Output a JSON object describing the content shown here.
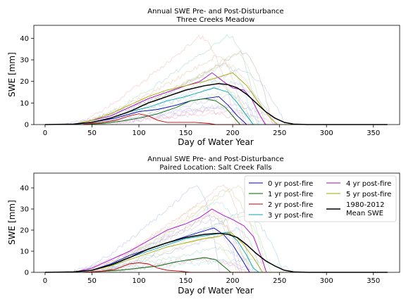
{
  "chart_data": [
    {
      "type": "line",
      "title_line1": "Annual SWE Pre- and Post-Disturbance",
      "title_line2": "Three Creeks Meadow",
      "xlabel": "Day of Water Year",
      "ylabel": "SWE [mm]",
      "xlim": [
        -12,
        378
      ],
      "ylim": [
        0,
        46
      ],
      "xticks": [
        0,
        50,
        100,
        150,
        200,
        250,
        300,
        350
      ],
      "yticks": [
        0,
        10,
        20,
        30,
        40
      ],
      "grid": false,
      "background_years_visible": true,
      "series": [
        {
          "name": "0 yr post-fire",
          "color": "#0000cc",
          "points": [
            [
              25,
              0
            ],
            [
              50,
              1
            ],
            [
              75,
              3
            ],
            [
              100,
              6
            ],
            [
              120,
              7
            ],
            [
              140,
              9
            ],
            [
              155,
              11
            ],
            [
              170,
              12
            ],
            [
              185,
              13
            ],
            [
              195,
              9
            ],
            [
              205,
              4
            ],
            [
              215,
              0
            ],
            [
              365,
              0
            ]
          ]
        },
        {
          "name": "1 yr post-fire",
          "color": "#006600",
          "points": [
            [
              40,
              0
            ],
            [
              60,
              0.5
            ],
            [
              80,
              1.5
            ],
            [
              100,
              3
            ],
            [
              120,
              5
            ],
            [
              140,
              8
            ],
            [
              155,
              11
            ],
            [
              170,
              12
            ],
            [
              182,
              11
            ],
            [
              192,
              8
            ],
            [
              200,
              4
            ],
            [
              208,
              0
            ],
            [
              365,
              0
            ]
          ]
        },
        {
          "name": "2 yr post-fire",
          "color": "#cc0000",
          "points": [
            [
              40,
              0
            ],
            [
              60,
              1
            ],
            [
              75,
              2
            ],
            [
              90,
              4
            ],
            [
              100,
              5
            ],
            [
              110,
              4
            ],
            [
              120,
              2
            ],
            [
              130,
              1
            ],
            [
              145,
              1
            ],
            [
              160,
              1
            ],
            [
              175,
              0.5
            ],
            [
              182,
              0
            ],
            [
              365,
              0
            ]
          ]
        },
        {
          "name": "3 yr post-fire",
          "color": "#00aaaa",
          "points": [
            [
              30,
              0
            ],
            [
              50,
              1
            ],
            [
              70,
              3
            ],
            [
              90,
              6
            ],
            [
              110,
              8
            ],
            [
              130,
              11
            ],
            [
              150,
              13
            ],
            [
              165,
              15
            ],
            [
              180,
              17
            ],
            [
              195,
              15
            ],
            [
              205,
              10
            ],
            [
              215,
              4
            ],
            [
              222,
              0
            ],
            [
              365,
              0
            ]
          ]
        },
        {
          "name": "4 yr post-fire",
          "color": "#aa00cc",
          "points": [
            [
              30,
              0
            ],
            [
              50,
              2
            ],
            [
              70,
              4
            ],
            [
              90,
              8
            ],
            [
              110,
              12
            ],
            [
              130,
              15
            ],
            [
              150,
              18
            ],
            [
              165,
              20
            ],
            [
              178,
              24
            ],
            [
              190,
              20
            ],
            [
              200,
              17
            ],
            [
              212,
              16
            ],
            [
              220,
              12
            ],
            [
              228,
              5
            ],
            [
              235,
              0
            ],
            [
              365,
              0
            ]
          ]
        },
        {
          "name": "5 yr post-fire",
          "color": "#aaaa00",
          "points": [
            [
              30,
              0
            ],
            [
              50,
              2
            ],
            [
              70,
              5
            ],
            [
              90,
              9
            ],
            [
              110,
              13
            ],
            [
              130,
              16
            ],
            [
              150,
              18
            ],
            [
              170,
              20
            ],
            [
              185,
              22
            ],
            [
              200,
              24
            ],
            [
              215,
              18
            ],
            [
              228,
              10
            ],
            [
              240,
              3
            ],
            [
              248,
              0
            ],
            [
              365,
              0
            ]
          ]
        },
        {
          "name": "1980-2012 Mean SWE",
          "color": "#000000",
          "points": [
            [
              0,
              0
            ],
            [
              30,
              0.2
            ],
            [
              50,
              1
            ],
            [
              70,
              3
            ],
            [
              90,
              6
            ],
            [
              110,
              10
            ],
            [
              130,
              13
            ],
            [
              150,
              16
            ],
            [
              170,
              18
            ],
            [
              185,
              19
            ],
            [
              195,
              18.5
            ],
            [
              205,
              17
            ],
            [
              215,
              14
            ],
            [
              225,
              10
            ],
            [
              235,
              6
            ],
            [
              245,
              3
            ],
            [
              255,
              1
            ],
            [
              265,
              0.2
            ],
            [
              280,
              0
            ],
            [
              365,
              0
            ]
          ]
        }
      ]
    },
    {
      "type": "line",
      "title_line1": "Annual SWE Pre- and Post-Disturbance",
      "title_line2": "Paired Location: Salt Creek Falls",
      "xlabel": "Day of Water Year",
      "ylabel": "SWE [mm]",
      "xlim": [
        -12,
        378
      ],
      "ylim": [
        0,
        47
      ],
      "xticks": [
        0,
        50,
        100,
        150,
        200,
        250,
        300,
        350
      ],
      "yticks": [
        0,
        10,
        20,
        30,
        40
      ],
      "grid": false,
      "legend_position": "top-right",
      "background_years_visible": true,
      "series": [
        {
          "name": "0 yr post-fire",
          "color": "#0000cc",
          "points": [
            [
              30,
              0
            ],
            [
              50,
              1
            ],
            [
              70,
              4
            ],
            [
              90,
              8
            ],
            [
              110,
              11
            ],
            [
              130,
              14
            ],
            [
              150,
              17
            ],
            [
              165,
              19
            ],
            [
              180,
              21
            ],
            [
              190,
              18
            ],
            [
              200,
              13
            ],
            [
              210,
              6
            ],
            [
              218,
              0
            ],
            [
              365,
              0
            ]
          ]
        },
        {
          "name": "1 yr post-fire",
          "color": "#006600",
          "points": [
            [
              40,
              0
            ],
            [
              60,
              0.5
            ],
            [
              80,
              1
            ],
            [
              100,
              2
            ],
            [
              120,
              3
            ],
            [
              140,
              5
            ],
            [
              155,
              6
            ],
            [
              170,
              7
            ],
            [
              182,
              6
            ],
            [
              190,
              3
            ],
            [
              198,
              0
            ],
            [
              365,
              0
            ]
          ]
        },
        {
          "name": "2 yr post-fire",
          "color": "#cc0000",
          "points": [
            [
              40,
              0
            ],
            [
              60,
              0.5
            ],
            [
              75,
              1.5
            ],
            [
              90,
              4
            ],
            [
              100,
              4.5
            ],
            [
              110,
              4
            ],
            [
              120,
              2
            ],
            [
              130,
              1
            ],
            [
              145,
              0.5
            ],
            [
              155,
              0
            ],
            [
              365,
              0
            ]
          ]
        },
        {
          "name": "3 yr post-fire",
          "color": "#00aaaa",
          "points": [
            [
              30,
              0
            ],
            [
              50,
              1
            ],
            [
              70,
              3
            ],
            [
              90,
              7
            ],
            [
              110,
              10
            ],
            [
              130,
              13
            ],
            [
              150,
              16
            ],
            [
              165,
              17
            ],
            [
              180,
              18
            ],
            [
              195,
              19
            ],
            [
              205,
              15
            ],
            [
              215,
              8
            ],
            [
              222,
              2
            ],
            [
              228,
              0
            ],
            [
              365,
              0
            ]
          ]
        },
        {
          "name": "4 yr post-fire",
          "color": "#aa00cc",
          "points": [
            [
              30,
              0
            ],
            [
              50,
              2
            ],
            [
              70,
              6
            ],
            [
              90,
              10
            ],
            [
              110,
              15
            ],
            [
              130,
              20
            ],
            [
              150,
              23
            ],
            [
              165,
              26
            ],
            [
              178,
              30
            ],
            [
              190,
              27
            ],
            [
              200,
              25
            ],
            [
              212,
              22
            ],
            [
              222,
              17
            ],
            [
              230,
              8
            ],
            [
              236,
              0
            ],
            [
              365,
              0
            ]
          ]
        },
        {
          "name": "5 yr post-fire",
          "color": "#aaaa00",
          "points": [
            [
              30,
              0
            ],
            [
              50,
              1
            ],
            [
              70,
              3
            ],
            [
              90,
              6
            ],
            [
              110,
              9
            ],
            [
              130,
              12
            ],
            [
              150,
              14
            ],
            [
              170,
              16
            ],
            [
              185,
              17
            ],
            [
              198,
              19
            ],
            [
              210,
              14
            ],
            [
              222,
              7
            ],
            [
              232,
              0
            ],
            [
              365,
              0
            ]
          ]
        },
        {
          "name": "1980-2012 Mean SWE",
          "color": "#000000",
          "points": [
            [
              0,
              0
            ],
            [
              30,
              0.2
            ],
            [
              50,
              1
            ],
            [
              70,
              3.5
            ],
            [
              90,
              7
            ],
            [
              110,
              11
            ],
            [
              130,
              14
            ],
            [
              150,
              16.5
            ],
            [
              170,
              18
            ],
            [
              185,
              18.5
            ],
            [
              195,
              18
            ],
            [
              205,
              16.5
            ],
            [
              215,
              13
            ],
            [
              225,
              9
            ],
            [
              235,
              5.5
            ],
            [
              245,
              3
            ],
            [
              255,
              1
            ],
            [
              265,
              0.2
            ],
            [
              280,
              0
            ],
            [
              365,
              0
            ]
          ]
        }
      ],
      "legend_entries": [
        {
          "label": "0 yr post-fire",
          "color": "#0000cc"
        },
        {
          "label": "1 yr post-fire",
          "color": "#006600"
        },
        {
          "label": "2 yr post-fire",
          "color": "#cc0000"
        },
        {
          "label": "3 yr post-fire",
          "color": "#00aaaa"
        },
        {
          "label": "4 yr post-fire",
          "color": "#aa00cc"
        },
        {
          "label": "5 yr post-fire",
          "color": "#aaaa00"
        },
        {
          "label_line1": "1980-2012",
          "label_line2": "Mean SWE",
          "color": "#000000"
        }
      ]
    }
  ]
}
